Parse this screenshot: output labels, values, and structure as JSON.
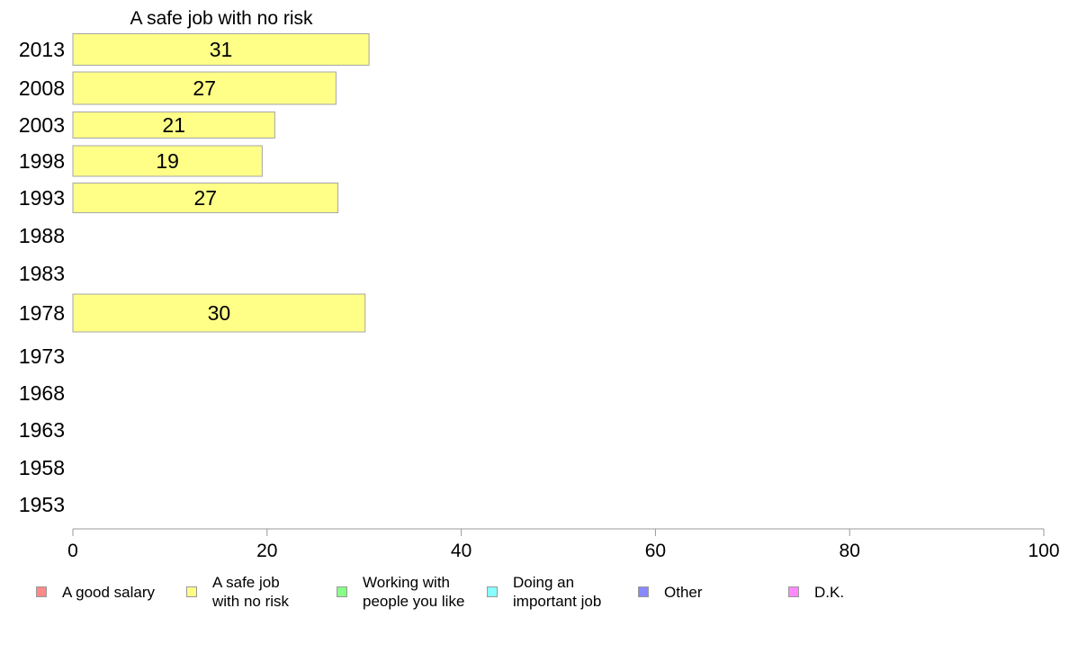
{
  "chart_data": {
    "type": "bar",
    "orientation": "horizontal",
    "title": "A safe job with no risk",
    "categories": [
      "2013",
      "2008",
      "2003",
      "1998",
      "1993",
      "1988",
      "1983",
      "1978",
      "1973",
      "1968",
      "1963",
      "1958",
      "1953"
    ],
    "series": [
      {
        "name": "A safe job with no risk",
        "values": [
          30.5,
          27.1,
          20.8,
          19.5,
          27.3,
          null,
          null,
          30.1,
          null,
          null,
          null,
          null,
          null
        ],
        "labels": [
          "31",
          "27",
          "21",
          "19",
          "27",
          null,
          null,
          "30",
          null,
          null,
          null,
          null,
          null
        ],
        "color": "#ffff88"
      }
    ],
    "xlim": [
      0,
      100
    ],
    "xticks": [
      "0",
      "20",
      "40",
      "60",
      "80",
      "100"
    ],
    "grid": false,
    "legend_position": "bottom"
  },
  "legend": [
    {
      "label": "A good salary",
      "color": "#ff8888"
    },
    {
      "label": "A safe job\nwith no risk",
      "color": "#ffff88"
    },
    {
      "label": "Working with\npeople you like",
      "color": "#88ff88"
    },
    {
      "label": "Doing an\nimportant job",
      "color": "#88ffff"
    },
    {
      "label": "Other",
      "color": "#8888ff"
    },
    {
      "label": "D.K.",
      "color": "#ff88ff"
    }
  ]
}
